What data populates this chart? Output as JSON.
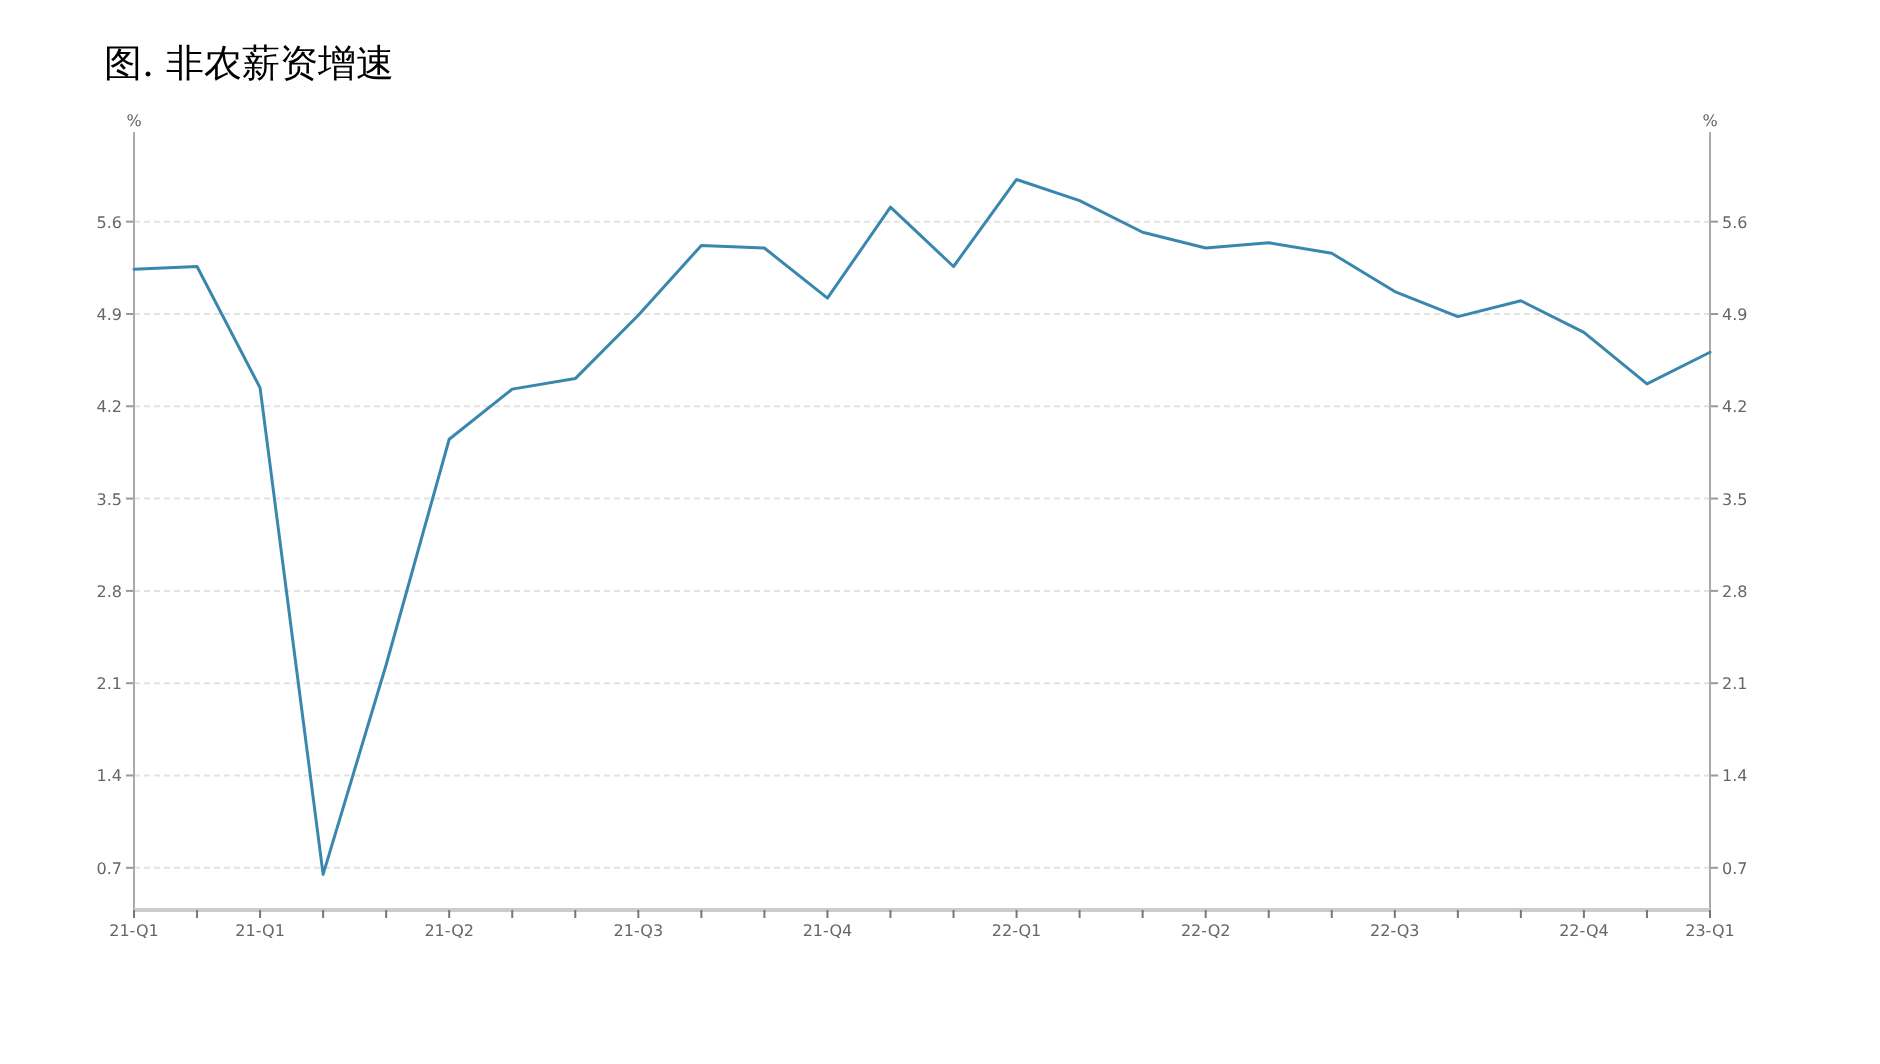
{
  "chart_data": {
    "type": "line",
    "title": "图. 非农薪资增速",
    "ylabel": "%",
    "y2label": "%",
    "categories": [
      "21-Q1",
      null,
      "21-Q1",
      null,
      null,
      "21-Q2",
      null,
      null,
      "21-Q3",
      null,
      null,
      "21-Q4",
      null,
      null,
      "22-Q1",
      null,
      null,
      "22-Q2",
      null,
      null,
      "22-Q3",
      null,
      null,
      "22-Q4",
      null,
      "23-Q1"
    ],
    "series": [
      {
        "color": "#3a87ad",
        "values": [
          5.24,
          5.26,
          4.34,
          0.65,
          2.24,
          3.95,
          4.33,
          4.41,
          4.89,
          5.42,
          5.4,
          5.02,
          5.71,
          5.26,
          5.92,
          5.76,
          5.52,
          5.4,
          5.44,
          5.36,
          5.07,
          4.88,
          5.0,
          4.76,
          4.37,
          4.61
        ]
      }
    ],
    "ylim": [
      0.38,
      6.28
    ],
    "yticks": [
      0.7,
      1.4,
      2.1,
      2.8,
      3.5,
      4.2,
      4.9,
      5.6
    ],
    "y2lim": [
      0.38,
      6.28
    ],
    "y2ticks": [
      0.7,
      1.4,
      2.1,
      2.8,
      3.5,
      4.2,
      4.9,
      5.6
    ],
    "grid": "y",
    "marker": "none",
    "line_style": "solid"
  }
}
